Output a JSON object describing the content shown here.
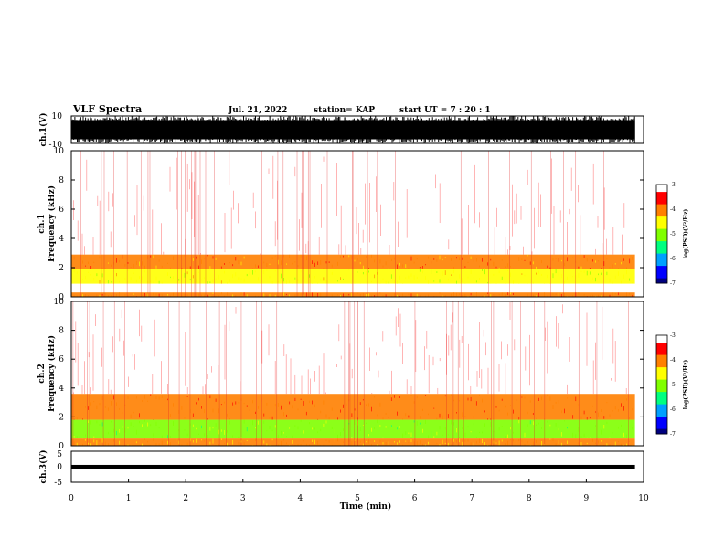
{
  "header": {
    "title": "VLF Spectra",
    "date": "Jul. 21, 2022",
    "station": "station= KAP",
    "start_ut": "start UT =  7 : 20 : 1"
  },
  "chart_data": [
    {
      "type": "line",
      "panel": "ch1-waveform",
      "ylabel": "ch.1(V)",
      "ylim": [
        -10,
        10
      ],
      "y_ticks": [
        "10",
        "-10"
      ],
      "xlim": [
        0,
        10
      ],
      "description_values": {
        "clip_high": 10,
        "clip_low": -10
      }
    },
    {
      "type": "heatmap",
      "panel": "ch1-spectrogram",
      "ylabel": "ch.1\nFrequency (kHz)",
      "ylim": [
        0,
        10
      ],
      "y_ticks": [
        "0",
        "2",
        "4",
        "6",
        "8",
        "10"
      ],
      "xlim": [
        0,
        9.85
      ],
      "bands": [
        {
          "f_low": 0.0,
          "f_high": 0.3,
          "level": -4.0
        },
        {
          "f_low": 0.9,
          "f_high": 1.9,
          "level": -4.6
        },
        {
          "f_low": 1.9,
          "f_high": 2.9,
          "level": -4.0
        },
        {
          "f_low": 2.9,
          "f_high": 10.0,
          "level": -3.3
        }
      ],
      "colorbar": {
        "label": "log(PSD)(V²/Hz)",
        "range": [
          -7,
          -3
        ],
        "ticks": [
          "-3",
          "-4",
          "-5",
          "-6",
          "-7"
        ]
      }
    },
    {
      "type": "heatmap",
      "panel": "ch2-spectrogram",
      "ylabel": "ch.2\nFrequency (kHz)",
      "ylim": [
        0,
        10
      ],
      "y_ticks": [
        "0",
        "2",
        "4",
        "6",
        "8",
        "10"
      ],
      "xlim": [
        0,
        9.85
      ],
      "bands": [
        {
          "f_low": 0.0,
          "f_high": 0.5,
          "level": -4.2
        },
        {
          "f_low": 0.5,
          "f_high": 1.8,
          "level": -4.9
        },
        {
          "f_low": 1.8,
          "f_high": 3.6,
          "level": -3.8
        },
        {
          "f_low": 3.6,
          "f_high": 10.0,
          "level": -3.3
        }
      ],
      "colorbar": {
        "label": "log(PSD)(V²/Hz)",
        "range": [
          -7,
          -3
        ],
        "ticks": [
          "-3",
          "-4",
          "-5",
          "-6",
          "-7"
        ]
      }
    },
    {
      "type": "line",
      "panel": "ch3-waveform",
      "ylabel": "ch.3(V)",
      "ylim": [
        -5,
        5
      ],
      "y_ticks": [
        "5",
        "0",
        "-5"
      ],
      "xlim": [
        0,
        10
      ],
      "description_values": {
        "band_center": 0.0,
        "band_halfwidth": 0.6
      },
      "xlabel": "Time (min)",
      "x_ticks": [
        "0",
        "1",
        "2",
        "3",
        "4",
        "5",
        "6",
        "7",
        "8",
        "9",
        "10"
      ]
    }
  ],
  "colors": {
    "colormap": [
      "#000080",
      "#0000ff",
      "#00a0ff",
      "#00ff80",
      "#80ff00",
      "#ffff00",
      "#ff8000",
      "#ff0000",
      "#ffffff"
    ],
    "waveform": "#000000"
  }
}
